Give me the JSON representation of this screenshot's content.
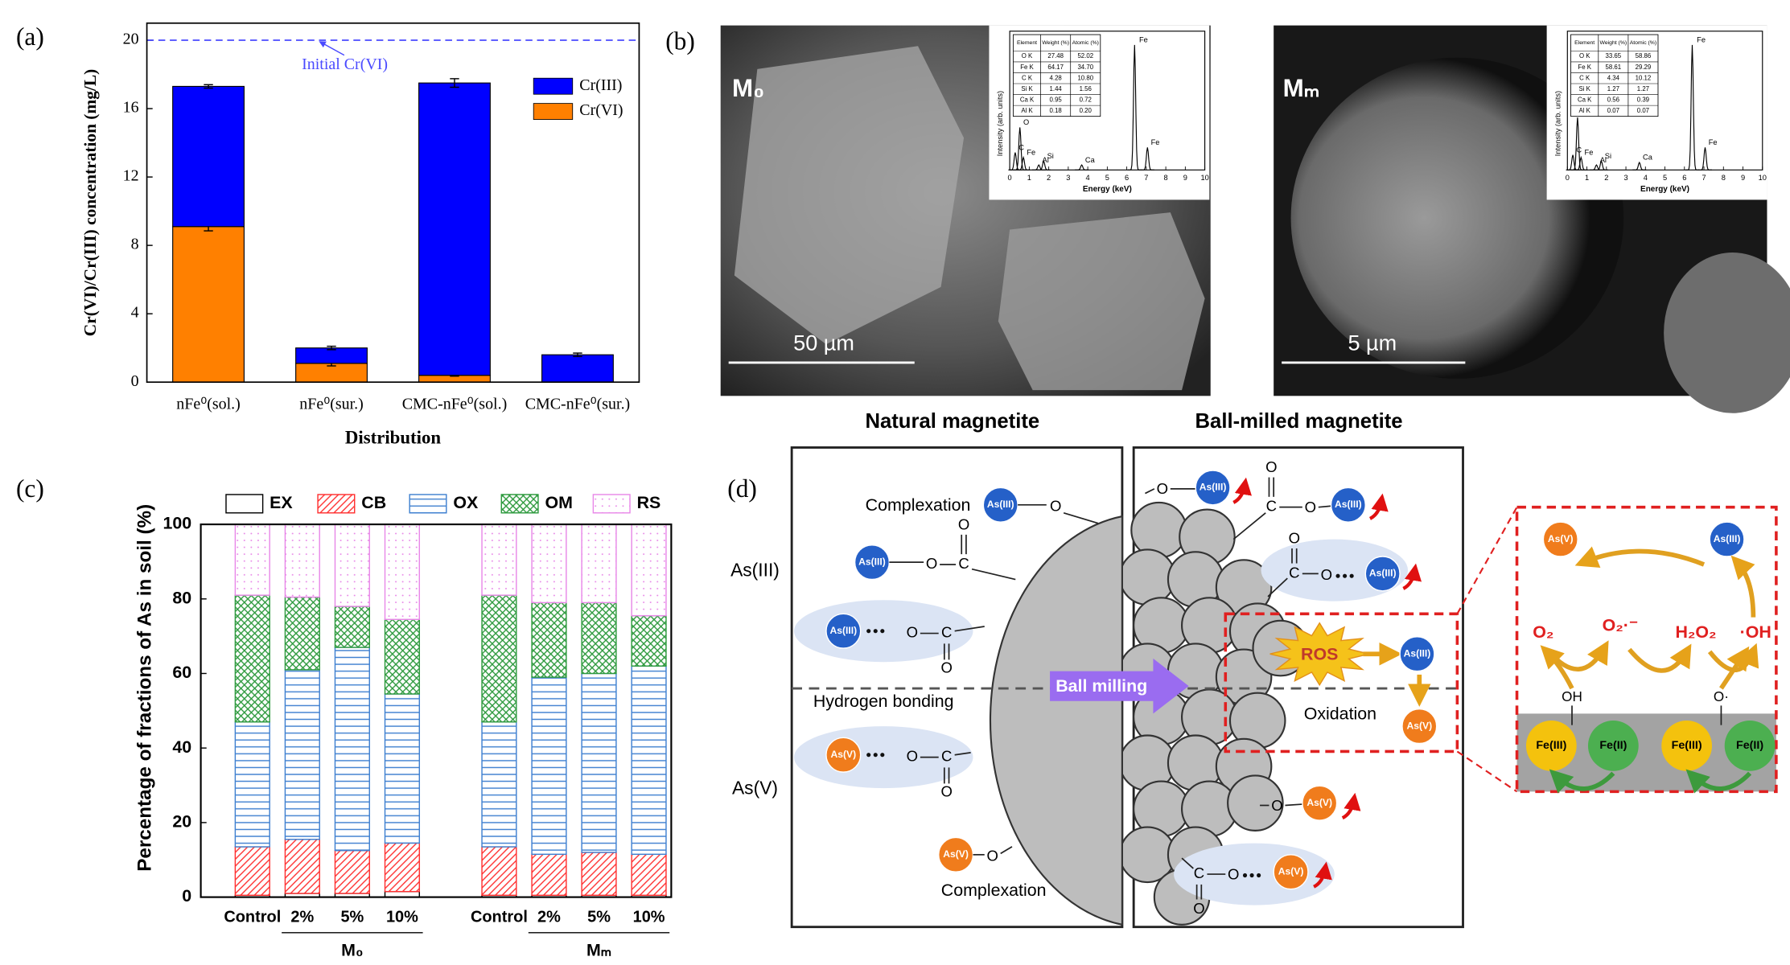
{
  "panel_labels": [
    "(a)",
    "(b)",
    "(c)",
    "(d)"
  ],
  "chart_data": [
    {
      "type": "bar",
      "stacked": true,
      "categories": [
        "nFe⁰(sol.)",
        "nFe⁰(sur.)",
        "CMC-nFe⁰(sol.)",
        "CMC-nFe⁰(sur.)"
      ],
      "series": [
        {
          "name": "Cr(VI)",
          "color": "#ff8000",
          "values": [
            9.1,
            1.1,
            0.4,
            0
          ],
          "errors": [
            0.25,
            0.15,
            0.05,
            0
          ]
        },
        {
          "name": "Cr(III)",
          "color": "#0000ff",
          "values": [
            8.2,
            0.9,
            17.1,
            1.6
          ],
          "errors": [
            0.1,
            0.1,
            0.25,
            0.1
          ]
        }
      ],
      "ylim": [
        0,
        21
      ],
      "yticks": [
        0,
        4,
        8,
        12,
        16,
        20
      ],
      "xlabel": "Distribution",
      "ylabel": "Cr(VI)/Cr(III) concentration (mg/L)",
      "reference_line": {
        "value": 20,
        "label": "Initial Cr(VI)",
        "color": "#4a4aff"
      },
      "legend": "upper right"
    },
    {
      "type": "bar",
      "stacked": true,
      "groups": [
        {
          "name": "M₀",
          "categories": [
            "Control",
            "2%",
            "5%",
            "10%"
          ]
        },
        {
          "name": "Mₘ",
          "categories": [
            "Control",
            "2%",
            "5%",
            "10%"
          ]
        }
      ],
      "series": [
        {
          "name": "EX",
          "color": "#000000",
          "pattern": "none",
          "values": [
            0.5,
            1,
            1,
            1.5,
            0.5,
            0.5,
            0.5,
            0.5
          ]
        },
        {
          "name": "CB",
          "color": "#ff3030",
          "pattern": "diagonal",
          "values": [
            13,
            14.5,
            11.5,
            13,
            13,
            11,
            11.5,
            11
          ]
        },
        {
          "name": "OX",
          "color": "#3f80d0",
          "pattern": "horizontal",
          "values": [
            33.5,
            45.5,
            54.5,
            40,
            33.5,
            47.5,
            48,
            50.5
          ]
        },
        {
          "name": "OM",
          "color": "#2e9a3e",
          "pattern": "crosshatch",
          "values": [
            34,
            19.5,
            11,
            20,
            34,
            20,
            19,
            13.5
          ]
        },
        {
          "name": "RS",
          "color": "#e888e8",
          "pattern": "dots",
          "values": [
            19,
            19.5,
            22,
            25.5,
            19,
            21,
            21,
            24.5
          ]
        }
      ],
      "ylim": [
        0,
        100
      ],
      "yticks": [
        0,
        20,
        40,
        60,
        80,
        100
      ],
      "ylabel": "Percentage of fractions of As in soil (%)",
      "legend": "upper center"
    }
  ],
  "sem": {
    "panels": [
      {
        "label": "M₀",
        "scale_bar": "50 µm",
        "eds": {
          "table": {
            "header": [
              "Element",
              "Weight (%)",
              "Atomic (%)"
            ],
            "rows": [
              [
                "O K",
                "27.48",
                "52.02"
              ],
              [
                "Fe K",
                "64.17",
                "34.70"
              ],
              [
                "C K",
                "4.28",
                "10.80"
              ],
              [
                "Si K",
                "1.44",
                "1.56"
              ],
              [
                "Ca K",
                "0.95",
                "0.72"
              ],
              [
                "Al K",
                "0.18",
                "0.20"
              ]
            ]
          },
          "spectrum": {
            "xlim": [
              0,
              10
            ],
            "xticks": [
              0,
              1,
              2,
              3,
              4,
              5,
              6,
              7,
              8,
              9,
              10
            ],
            "ylim": [
              0,
              100
            ],
            "xlabel": "Energy (keV)",
            "ylabel": "Intensity (arb. units)",
            "peaks": [
              {
                "label": "C",
                "x": 0.28,
                "height": 14
              },
              {
                "label": "O",
                "x": 0.52,
                "height": 34
              },
              {
                "label": "Fe",
                "x": 0.7,
                "height": 10
              },
              {
                "label": "Al",
                "x": 1.49,
                "height": 4
              },
              {
                "label": "Si",
                "x": 1.74,
                "height": 7
              },
              {
                "label": "Ca",
                "x": 3.69,
                "height": 4
              },
              {
                "label": "Fe",
                "x": 6.4,
                "height": 100
              },
              {
                "label": "Fe",
                "x": 7.06,
                "height": 18
              }
            ]
          }
        }
      },
      {
        "label": "Mₘ",
        "scale_bar": "5 µm",
        "eds": {
          "table": {
            "header": [
              "Element",
              "Weight (%)",
              "Atomic (%)"
            ],
            "rows": [
              [
                "O K",
                "33.65",
                "58.86"
              ],
              [
                "Fe K",
                "58.61",
                "29.29"
              ],
              [
                "C K",
                "4.34",
                "10.12"
              ],
              [
                "Si K",
                "1.27",
                "1.27"
              ],
              [
                "Ca K",
                "0.56",
                "0.39"
              ],
              [
                "Al K",
                "0.07",
                "0.07"
              ]
            ]
          },
          "spectrum": {
            "xlim": [
              0,
              10
            ],
            "xticks": [
              0,
              1,
              2,
              3,
              4,
              5,
              6,
              7,
              8,
              9,
              10
            ],
            "ylim": [
              0,
              100
            ],
            "xlabel": "Energy (keV)",
            "ylabel": "Intensity (arb. units)",
            "peaks": [
              {
                "label": "C",
                "x": 0.28,
                "height": 12
              },
              {
                "label": "O",
                "x": 0.52,
                "height": 42
              },
              {
                "label": "Fe",
                "x": 0.7,
                "height": 10
              },
              {
                "label": "Al",
                "x": 1.49,
                "height": 4
              },
              {
                "label": "Si",
                "x": 1.74,
                "height": 7
              },
              {
                "label": "Ca",
                "x": 3.69,
                "height": 6
              },
              {
                "label": "Fe",
                "x": 6.4,
                "height": 100
              },
              {
                "label": "Fe",
                "x": 7.06,
                "height": 18
              }
            ]
          }
        }
      }
    ]
  },
  "diagram": {
    "title_left": "Natural magnetite",
    "title_right": "Ball-milled magnetite",
    "row_labels": [
      "As(III)",
      "As(V)"
    ],
    "species": {
      "as3": "As(III)",
      "as5": "As(V)"
    },
    "atoms": {
      "o": "O",
      "c": "C"
    },
    "labels": {
      "complexation": "Complexation",
      "hydrogen_bonding": "Hydrogen bonding",
      "ball_milling": "Ball milling",
      "ros": "ROS",
      "oxidation": "Oxidation"
    },
    "inset": {
      "o2": "O₂",
      "superoxide": "O₂·⁻",
      "h2o2": "H₂O₂",
      "oh_radical": "·OH",
      "oh": "OH",
      "o_radical": "O·",
      "fe3": "Fe(III)",
      "fe2": "Fe(II)"
    }
  }
}
